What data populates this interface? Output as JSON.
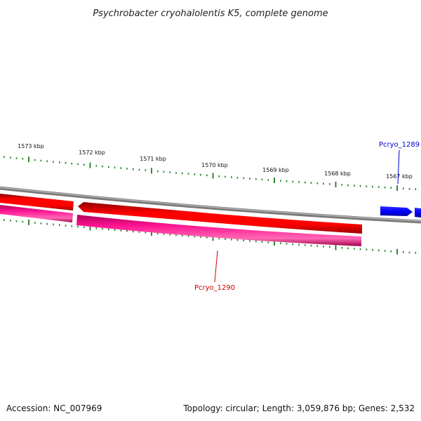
{
  "title": "Psychrobacter cryohalolentis K5, complete genome",
  "scale": {
    "tick_labels": [
      "1573 kbp",
      "1572 kbp",
      "1571 kbp",
      "1570 kbp",
      "1569 kbp",
      "1568 kbp",
      "1567 kbp"
    ]
  },
  "genes": [
    {
      "label": "Pcryo_1289",
      "strand": "forward",
      "color": "#0000ff"
    },
    {
      "label": "Pcryo_1290",
      "strand": "reverse",
      "color": "#ff0000",
      "cds_color": "#ff1493"
    }
  ],
  "colors": {
    "backbone": "#8c8c8c",
    "tick": "#1a7a1a",
    "forward_gene": "#0000ff",
    "reverse_gene": "#ff0000",
    "reverse_cds": "#ff1493"
  },
  "footer": {
    "accession": "Accession: NC_007969",
    "summary": "Topology: circular; Length: 3,059,876 bp; Genes: 2,532"
  }
}
